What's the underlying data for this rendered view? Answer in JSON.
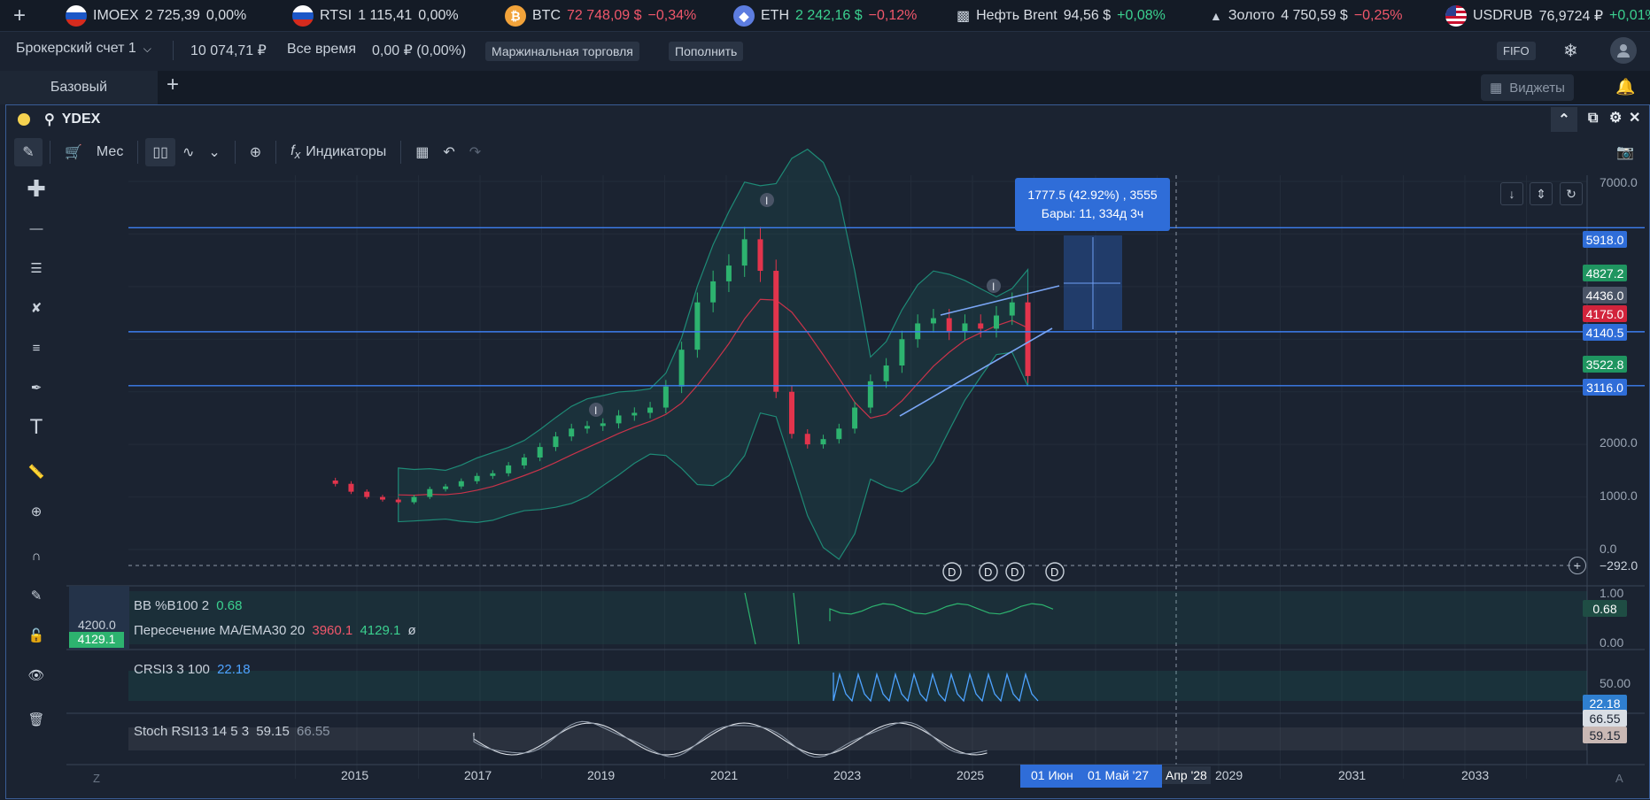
{
  "ticker": [
    {
      "name": "IMOEX",
      "value": "2 725,39",
      "change": "0,00%",
      "dir": "wt",
      "icon": "ru-flag-icon",
      "x": 74
    },
    {
      "name": "RTSI",
      "value": "1 115,41",
      "change": "0,00%",
      "dir": "wt",
      "icon": "ru-flag-icon",
      "x": 330
    },
    {
      "name": "BTC",
      "value": "72 748,09 $",
      "change": "−0,34%",
      "dir": "dn",
      "icon": "bitcoin-icon",
      "x": 570
    },
    {
      "name": "ETH",
      "value": "2 242,16 $",
      "change": "−0,12%",
      "dir": "up",
      "icon": "ethereum-icon",
      "x": 828
    },
    {
      "name": "Нефть Brent",
      "value": "94,56 $",
      "change": "+0,08%",
      "dir": "wt",
      "icon": "oil-icon",
      "x": 1080
    },
    {
      "name": "Золото",
      "value": "4 750,59 $",
      "change": "−0,25%",
      "dir": "wt",
      "icon": "gold-icon",
      "x": 1366
    },
    {
      "name": "USDRUB",
      "value": "76,9724 ₽",
      "change": "+0,01%",
      "dir": "wt",
      "icon": "us-flag-icon",
      "x": 1632
    }
  ],
  "account": {
    "name": "Брокерский счет 1",
    "balance": "10 074,71 ₽",
    "period": "Все время",
    "pnl": "0,00 ₽ (0,00%)",
    "margin": "Маржинальная торговля",
    "topup": "Пополнить",
    "fifo": "FIFO"
  },
  "tabs": {
    "tab1": "Базовый",
    "widgets": "Виджеты"
  },
  "window": {
    "symbol": "YDEX"
  },
  "toolbar": {
    "interval": "Мес",
    "indicators": "Индикаторы"
  },
  "colors": {
    "up": "#2db36f",
    "down": "#e2344c",
    "accent": "#2f6dd8",
    "band": "#1e8a76"
  },
  "chart_data": {
    "type": "candlestick",
    "symbol": "YDEX",
    "x_labels": [
      "2015",
      "2017",
      "2019",
      "2021",
      "2023",
      "2025",
      "2029",
      "2031",
      "2033"
    ],
    "y_ticks": [
      "7000.0",
      "2000.0",
      "1000.0",
      "0.0",
      "−292.0"
    ],
    "horizontal_lines": [
      5918.0,
      4175.0,
      3116.0
    ],
    "price_tags": [
      {
        "value": "5918.0",
        "kind": "line"
      },
      {
        "value": "4827.2",
        "kind": "up"
      },
      {
        "value": "4436.0",
        "kind": "gray"
      },
      {
        "value": "4175.0",
        "kind": "down"
      },
      {
        "value": "4140.5",
        "kind": "line"
      },
      {
        "value": "3522.8",
        "kind": "up"
      },
      {
        "value": "3116.0",
        "kind": "line"
      }
    ],
    "measure_tooltip": {
      "line1": "1777.5 (42.92%) , 3555",
      "line2": "Бары: 11, 334д 3ч"
    },
    "crosshair_labels": {
      "date1": "01 Июн",
      "date2": "01 Май '27",
      "date3": "Апр '28"
    },
    "dividend_markers": [
      "D",
      "D",
      "D",
      "D"
    ],
    "earnings_markers": [
      "I",
      "I",
      "I"
    ],
    "left_price": {
      "top": "4200.0",
      "bottom": "4129.1"
    },
    "close_series": [
      1250,
      1100,
      1000,
      950,
      900,
      1000,
      1150,
      1200,
      1300,
      1400,
      1450,
      1600,
      1750,
      1950,
      2150,
      2300,
      2350,
      2400,
      2550,
      2600,
      2700,
      3100,
      3800,
      4700,
      5100,
      5400,
      5900,
      5300,
      3000,
      2200,
      2000,
      2100,
      2300,
      2700,
      3200,
      3500,
      4000,
      4300,
      4400,
      4150,
      4300,
      4200,
      4450,
      4700,
      3300
    ]
  },
  "indicators": {
    "bb": {
      "label": "BB %B100 2",
      "value": "0.68",
      "ticks": [
        "1.00",
        "0.68",
        "0.00"
      ]
    },
    "ma": {
      "label": "Пересечение MA/EMA30 20",
      "v1": "3960.1",
      "v2": "4129.1",
      "v3": "ø"
    },
    "crsi": {
      "label": "CRSI3 3 100",
      "value": "22.18",
      "ticks": [
        "50.00",
        "22.18"
      ]
    },
    "stoch": {
      "label": "Stoch RSI13 14 5 3",
      "v1": "59.15",
      "v2": "66.55",
      "ticks": [
        "66.55",
        "59.15"
      ]
    }
  },
  "bottom": {
    "left": "Z",
    "right": "A"
  }
}
